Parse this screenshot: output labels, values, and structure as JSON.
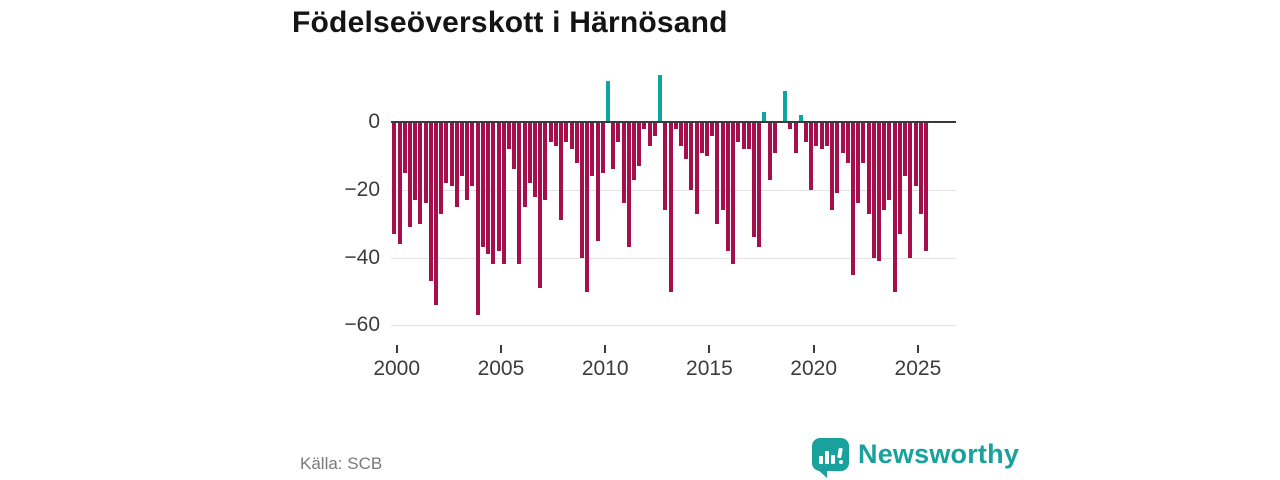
{
  "title": "Födelseöverskott i Härnösand",
  "source": "Källa: SCB",
  "branding": {
    "name": "Newsworthy",
    "icon": "speech-bubble-bar-chart-icon"
  },
  "colors": {
    "negative": "#a60e4c",
    "positive": "#0ca69e",
    "brand": "#18a29b",
    "grid": "#e3e3e3",
    "zero_line": "#3a3a3a",
    "axis_text": "#3c3c3c",
    "title_text": "#141414",
    "source_text": "#7a7a7a",
    "background": "#ffffff"
  },
  "chart_data": {
    "type": "bar",
    "title": "Födelseöverskott i Härnösand",
    "xlabel": "",
    "ylabel": "",
    "x_unit": "quarter",
    "start_year": 2000,
    "start_quarter": 1,
    "end_label": "2025 Q3",
    "x_tick_labels": [
      "2000",
      "2005",
      "2010",
      "2015",
      "2020",
      "2025"
    ],
    "y_ticks": [
      0,
      -20,
      -40,
      -60
    ],
    "y_tick_labels": [
      "0",
      "−20",
      "−40",
      "−60"
    ],
    "ylim": [
      -62,
      16
    ],
    "grid": "horizontal",
    "legend": "none",
    "series": [
      {
        "name": "Födelseöverskott",
        "values": [
          -33,
          -36,
          -15,
          -31,
          -23,
          -30,
          -24,
          -47,
          -54,
          -27,
          -18,
          -19,
          -25,
          -16,
          -23,
          -19,
          -57,
          -37,
          -39,
          -42,
          -38,
          -42,
          -8,
          -14,
          -42,
          -25,
          -18,
          -22,
          -49,
          -23,
          -6,
          -7,
          -29,
          -6,
          -8,
          -12,
          -40,
          -50,
          -16,
          -35,
          -15,
          12,
          -14,
          -6,
          -24,
          -37,
          -17,
          -13,
          -2,
          -7,
          -4,
          14,
          -26,
          -50,
          -2,
          -7,
          -11,
          -20,
          -27,
          -9,
          -10,
          -4,
          -30,
          -26,
          -38,
          -42,
          -6,
          -8,
          -8,
          -34,
          -37,
          3,
          -17,
          -9,
          0,
          9,
          -2,
          -9,
          2,
          -6,
          -20,
          -7,
          -8,
          -7,
          -26,
          -21,
          -9,
          -12,
          -45,
          -24,
          -12,
          -27,
          -40,
          -41,
          -26,
          -23,
          -50,
          -33,
          -16,
          -40,
          -19,
          -27,
          -38
        ]
      }
    ]
  }
}
